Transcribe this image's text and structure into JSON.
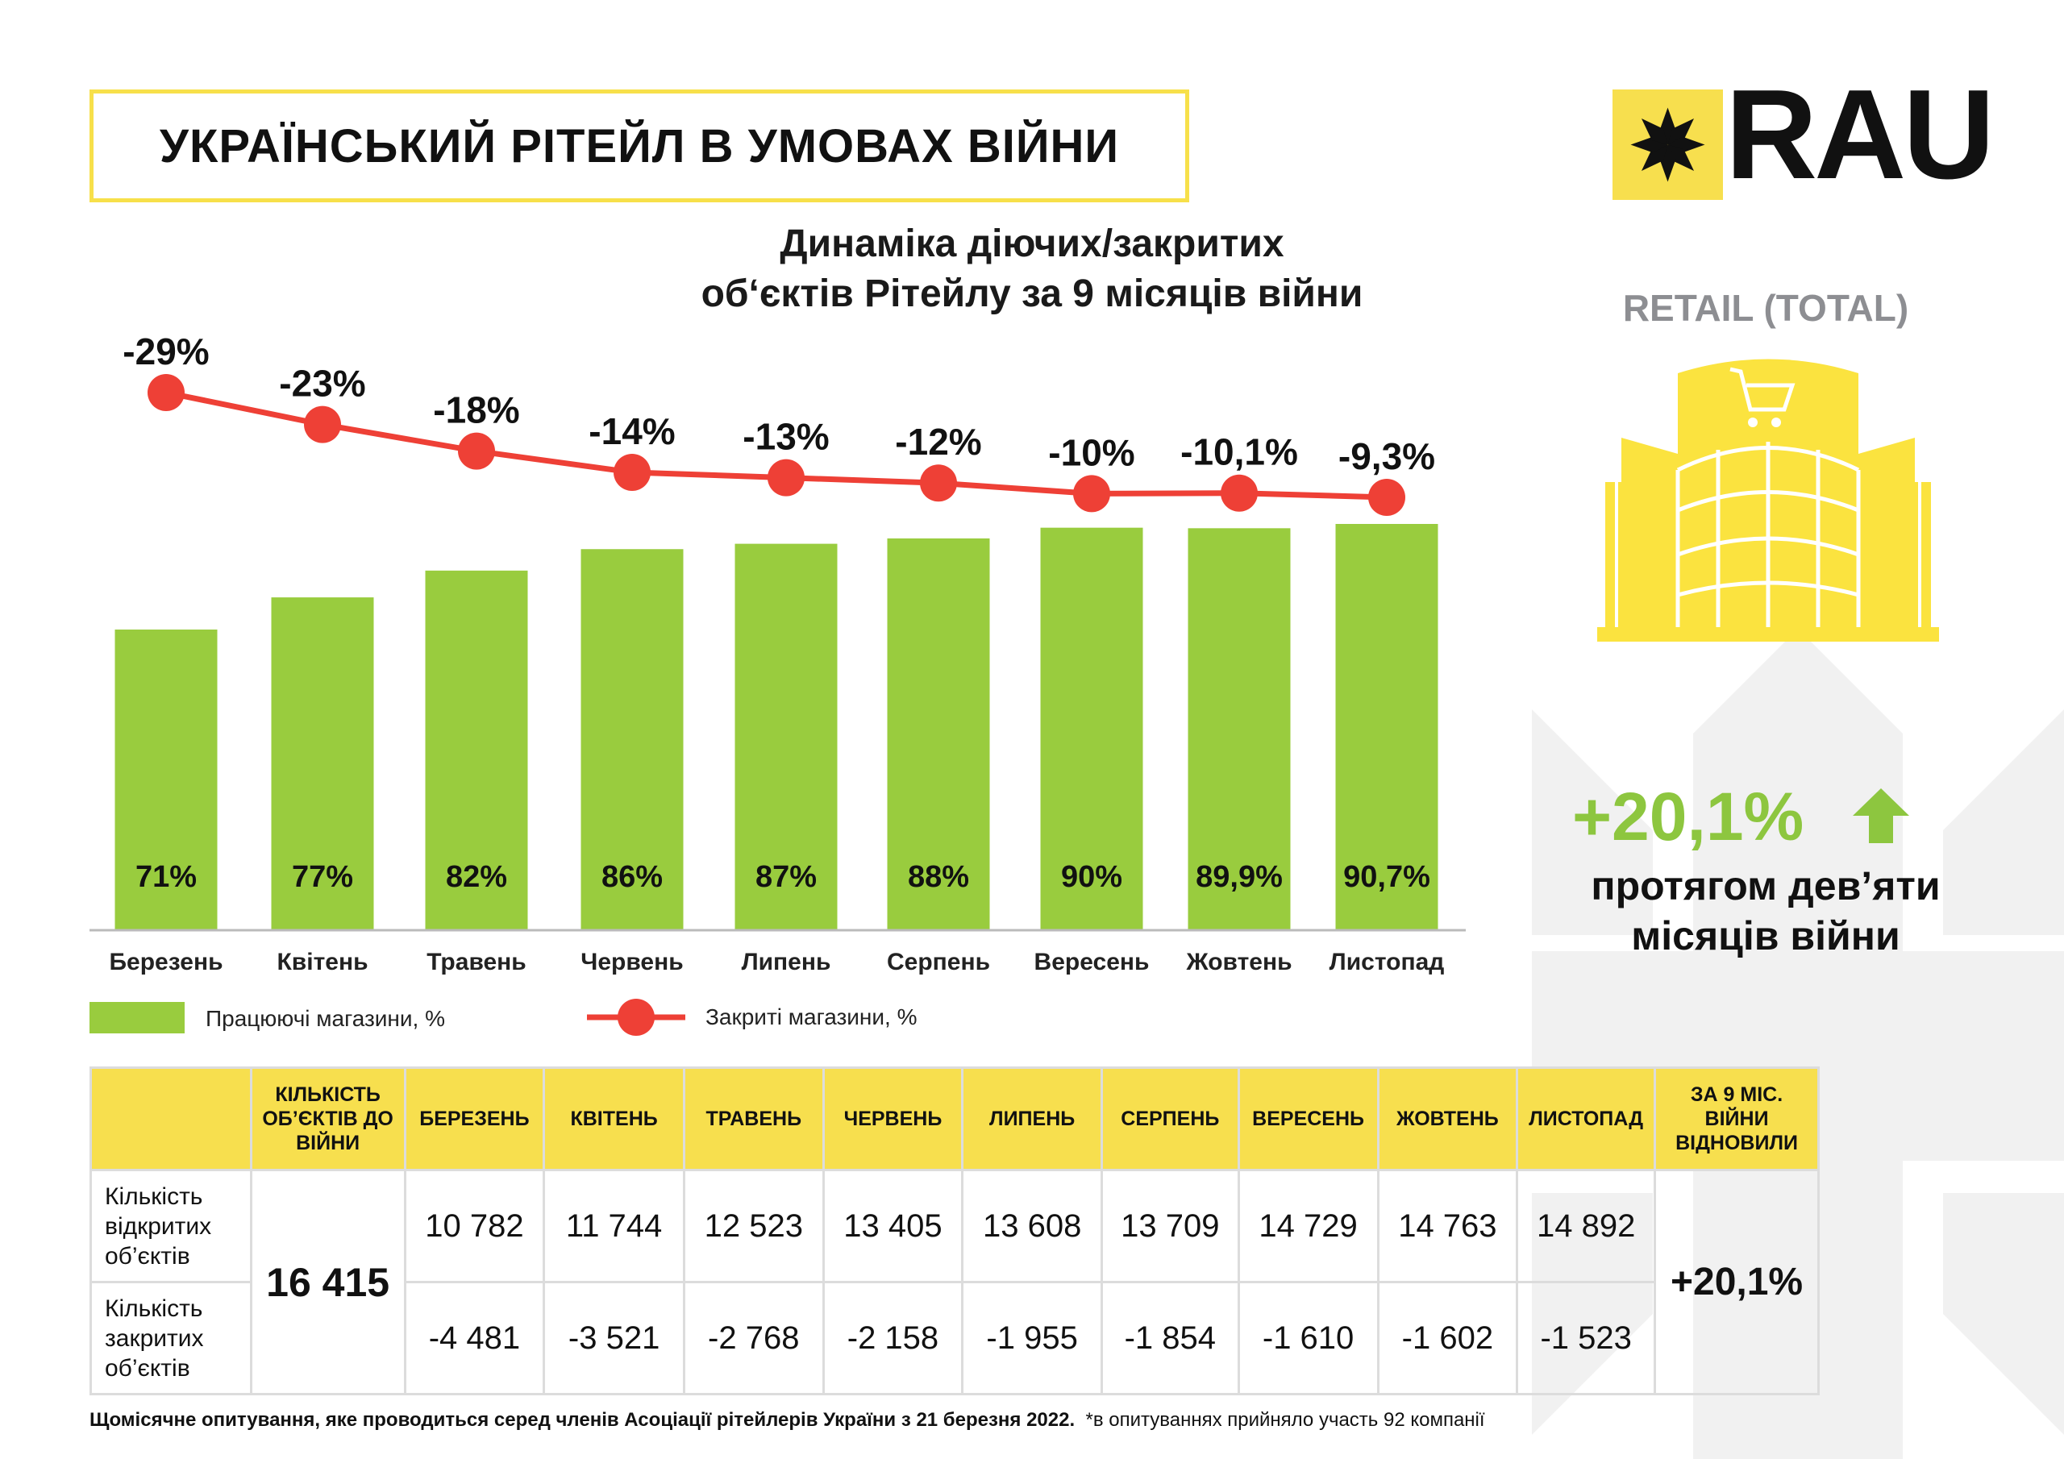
{
  "header": {
    "title": "УКРАЇНСЬКИЙ РІТЕЙЛ В УМОВАХ ВІЙНИ",
    "logo_text": "RAU"
  },
  "colors": {
    "accent_yellow": "#f7df4e",
    "bar_green": "#99cc3e",
    "line_red": "#ee4036",
    "growth_green": "#8dc63f"
  },
  "chart_data": {
    "type": "bar",
    "title": "Динаміка діючих/закритих об‘єктів Рітейлу за 9 місяців війни",
    "title_lines": [
      "Динаміка діючих/закритих",
      "об‘єктів Рітейлу за 9 місяців війни"
    ],
    "categories": [
      "Березень",
      "Квітень",
      "Травень",
      "Червень",
      "Липень",
      "Серпень",
      "Вересень",
      "Жовтень",
      "Листопад"
    ],
    "series": [
      {
        "name": "Працюючі магазини, %",
        "type": "bar",
        "values": [
          71,
          77,
          82,
          86,
          87,
          88,
          90,
          89.9,
          90.7
        ],
        "labels": [
          "71%",
          "77%",
          "82%",
          "86%",
          "87%",
          "88%",
          "90%",
          "89,9%",
          "90,7%"
        ]
      },
      {
        "name": "Закриті магазини, %",
        "type": "line",
        "values": [
          -29,
          -23,
          -18,
          -14,
          -13,
          -12,
          -10,
          -10.1,
          -9.3
        ],
        "labels": [
          "-29%",
          "-23%",
          "-18%",
          "-14%",
          "-13%",
          "-12%",
          "-10%",
          "-10,1%",
          "-9,3%"
        ]
      }
    ],
    "legend": "bottom-left",
    "xlabel": "",
    "ylabel": "",
    "grid": false
  },
  "side": {
    "retail_label": "RETAIL (TOTAL)",
    "growth_value": "+20,1%",
    "growth_text_1": "протягом дев’яти",
    "growth_text_2": "місяців війни"
  },
  "table": {
    "headers": [
      "",
      "КІЛЬКІСТЬ ОБ’ЄКТІВ ДО ВІЙНИ",
      "БЕРЕЗЕНЬ",
      "КВІТЕНЬ",
      "ТРАВЕНЬ",
      "ЧЕРВЕНЬ",
      "ЛИПЕНЬ",
      "СЕРПЕНЬ",
      "ВЕРЕСЕНЬ",
      "ЖОВТЕНЬ",
      "ЛИСТОПАД",
      "ЗА 9 МІС. ВІЙНИ ВІДНОВИЛИ"
    ],
    "base": "16 415",
    "total": "+20,1%",
    "rows": [
      {
        "label": "Кількість відкритих об’єктів",
        "values": [
          "10 782",
          "11 744",
          "12 523",
          "13 405",
          "13 608",
          "13 709",
          "14 729",
          "14 763",
          "14 892"
        ]
      },
      {
        "label": "Кількість закритих об’єктів",
        "values": [
          "-4 481",
          "-3 521",
          "-2 768",
          "-2 158",
          "-1 955",
          "-1 854",
          "-1 610",
          "-1 602",
          "-1 523"
        ]
      }
    ]
  },
  "footer": {
    "main": "Щомісячне опитування, яке проводиться серед членів Асоціації рітейлерів України з 21 березня 2022.",
    "note": "*в опитуваннях прийняло участь 92 компанії"
  }
}
